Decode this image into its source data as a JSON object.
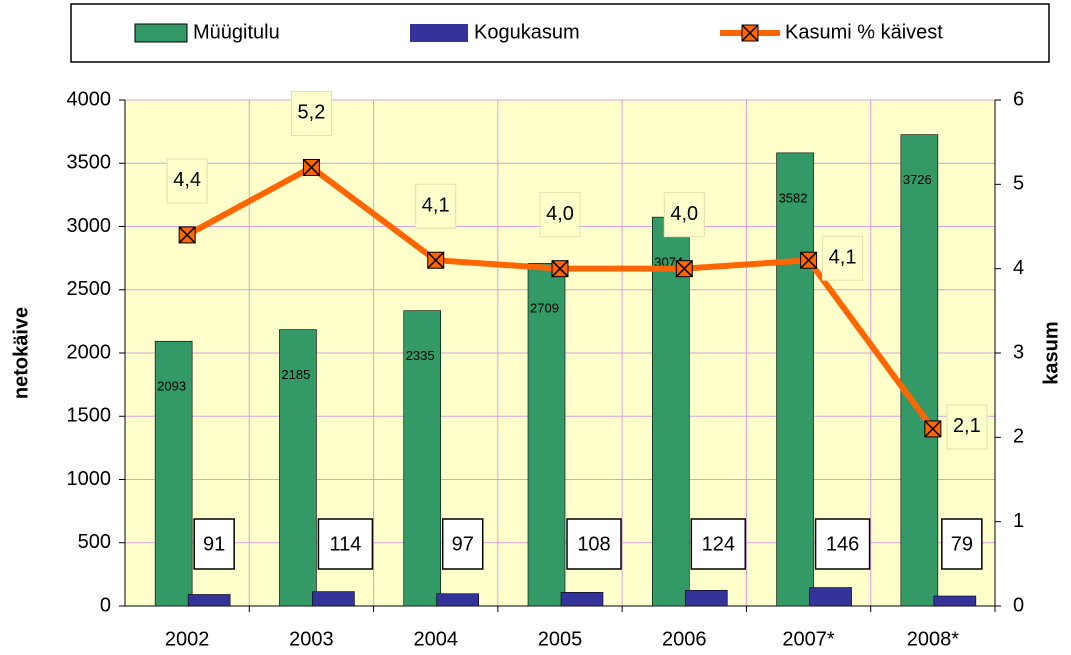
{
  "chart_data": {
    "type": "bar_line",
    "categories": [
      "2002",
      "2003",
      "2004",
      "2005",
      "2006",
      "2007*",
      "2008*"
    ],
    "y_label": "netokäive",
    "y2_label": "kasum",
    "ylim": [
      0,
      4000
    ],
    "yticks": [
      0,
      500,
      1000,
      1500,
      2000,
      2500,
      3000,
      3500,
      4000
    ],
    "y2lim": [
      0,
      6
    ],
    "y2ticks": [
      0,
      1,
      2,
      3,
      4,
      5,
      6
    ],
    "grid": true,
    "legend": "top",
    "series": [
      {
        "name": "Müügitulu",
        "kind": "bar",
        "color": "#339966",
        "values": [
          2093,
          2185,
          2335,
          2709,
          3074,
          3582,
          3726
        ]
      },
      {
        "name": "Kogukasum",
        "kind": "bar",
        "color": "#333399",
        "values": [
          91,
          114,
          97,
          108,
          124,
          146,
          79
        ]
      },
      {
        "name": "Kasumi % käivest",
        "kind": "line",
        "axis": "y2",
        "color": "#ff6600",
        "values": [
          4.4,
          5.2,
          4.1,
          4.0,
          4.0,
          4.1,
          2.1
        ],
        "value_labels": [
          "4,4",
          "5,2",
          "4,1",
          "4,0",
          "4,0",
          "4,1",
          "2,1"
        ]
      }
    ]
  }
}
